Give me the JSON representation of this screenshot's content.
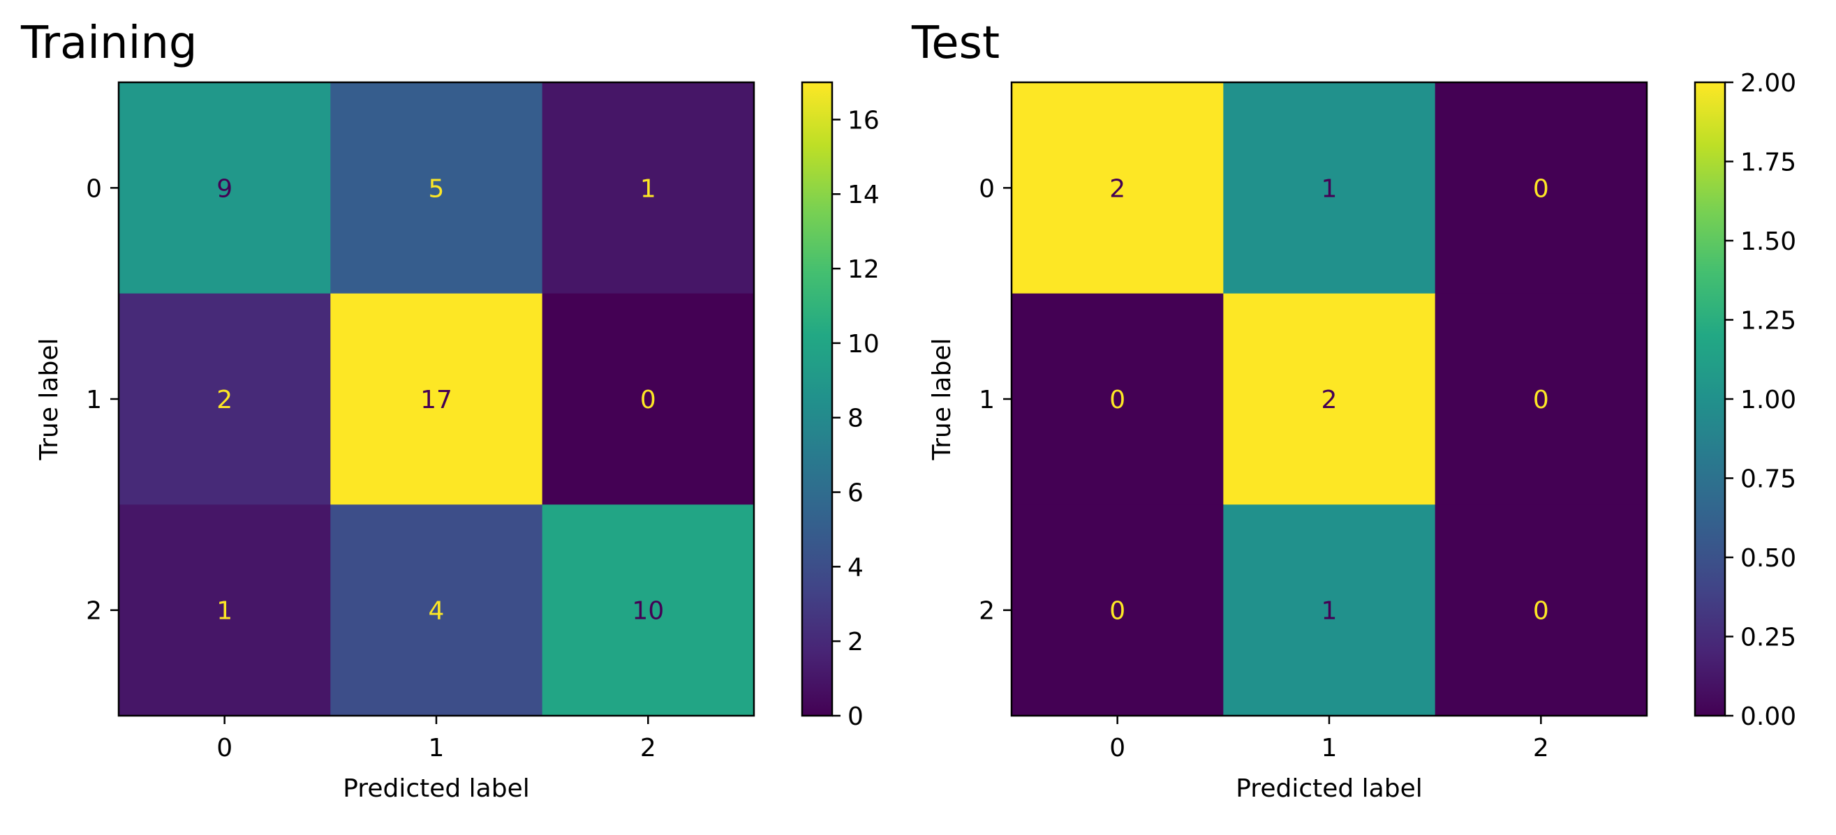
{
  "chart_data": [
    {
      "type": "heatmap",
      "title": "Training",
      "xlabel": "Predicted label",
      "ylabel": "True label",
      "x_categories": [
        "0",
        "1",
        "2"
      ],
      "y_categories": [
        "0",
        "1",
        "2"
      ],
      "values": [
        [
          9,
          5,
          1
        ],
        [
          2,
          17,
          0
        ],
        [
          1,
          4,
          10
        ]
      ],
      "value_labels": [
        [
          "9",
          "5",
          "1"
        ],
        [
          "2",
          "17",
          "0"
        ],
        [
          "1",
          "4",
          "10"
        ]
      ],
      "colormap": "viridis",
      "colorbar": {
        "range": [
          0,
          17
        ],
        "ticks": [
          0,
          2,
          4,
          6,
          8,
          10,
          12,
          14,
          16
        ],
        "tick_labels": [
          "0",
          "2",
          "4",
          "6",
          "8",
          "10",
          "12",
          "14",
          "16"
        ]
      }
    },
    {
      "type": "heatmap",
      "title": "Test",
      "xlabel": "Predicted label",
      "ylabel": "True label",
      "x_categories": [
        "0",
        "1",
        "2"
      ],
      "y_categories": [
        "0",
        "1",
        "2"
      ],
      "values": [
        [
          2,
          1,
          0
        ],
        [
          0,
          2,
          0
        ],
        [
          0,
          1,
          0
        ]
      ],
      "value_labels": [
        [
          "2",
          "1",
          "0"
        ],
        [
          "0",
          "2",
          "0"
        ],
        [
          "0",
          "1",
          "0"
        ]
      ],
      "colormap": "viridis",
      "colorbar": {
        "range": [
          0,
          2
        ],
        "ticks": [
          0,
          0.25,
          0.5,
          0.75,
          1,
          1.25,
          1.5,
          1.75,
          2
        ],
        "tick_labels": [
          "0.00",
          "0.25",
          "0.50",
          "0.75",
          "1.00",
          "1.25",
          "1.50",
          "1.75",
          "2.00"
        ]
      }
    }
  ]
}
